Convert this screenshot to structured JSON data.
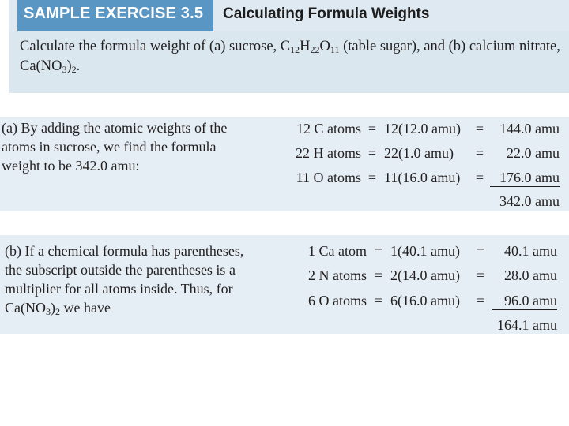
{
  "header": {
    "label": "SAMPLE EXERCISE 3.5",
    "title": "Calculating Formula Weights"
  },
  "problem": {
    "text_pre": "Calculate the formula weight of (a) sucrose, C",
    "sub1": "12",
    "mid1": "H",
    "sub2": "22",
    "mid2": "O",
    "sub3": "11",
    "mid3": " (table sugar), and (b) calcium nitrate, Ca(NO",
    "sub4": "3",
    "mid4": ")",
    "sub5": "2",
    "end": "."
  },
  "part_a": {
    "desc_lines": [
      "(a) By adding the atomic weights of the",
      "atoms in sucrose, we find the formula",
      "weight to be 342.0 amu:"
    ],
    "rows": [
      {
        "lhs": "12 C atoms",
        "eq1": "=",
        "mid": "12(12.0 amu)",
        "eq2": "=",
        "rhs": "144.0 amu"
      },
      {
        "lhs": "22 H atoms",
        "eq1": "=",
        "mid": "22(1.0 amu)",
        "eq2": "=",
        "rhs": "22.0 amu"
      },
      {
        "lhs": "11 O atoms",
        "eq1": "=",
        "mid": "11(16.0 amu)",
        "eq2": "=",
        "rhs": "176.0 amu"
      }
    ],
    "total": "342.0 amu"
  },
  "part_b": {
    "desc_lines": [
      "(b) If a chemical formula has parentheses,",
      "the subscript outside the parentheses is a",
      "multiplier for all atoms inside. Thus, for"
    ],
    "last_pre": "Ca(NO",
    "last_sub1": "3",
    "last_mid": ")",
    "last_sub2": "2",
    "last_post": " we have",
    "rows": [
      {
        "lhs": "1 Ca atom",
        "eq1": "=",
        "mid": "1(40.1 amu)",
        "eq2": "=",
        "rhs": "40.1 amu"
      },
      {
        "lhs": "2 N atoms",
        "eq1": "=",
        "mid": "2(14.0 amu)",
        "eq2": "=",
        "rhs": "28.0 amu"
      },
      {
        "lhs": "6 O atoms",
        "eq1": "=",
        "mid": "6(16.0 amu)",
        "eq2": "=",
        "rhs": "96.0 amu"
      }
    ],
    "total": "164.1 amu"
  }
}
